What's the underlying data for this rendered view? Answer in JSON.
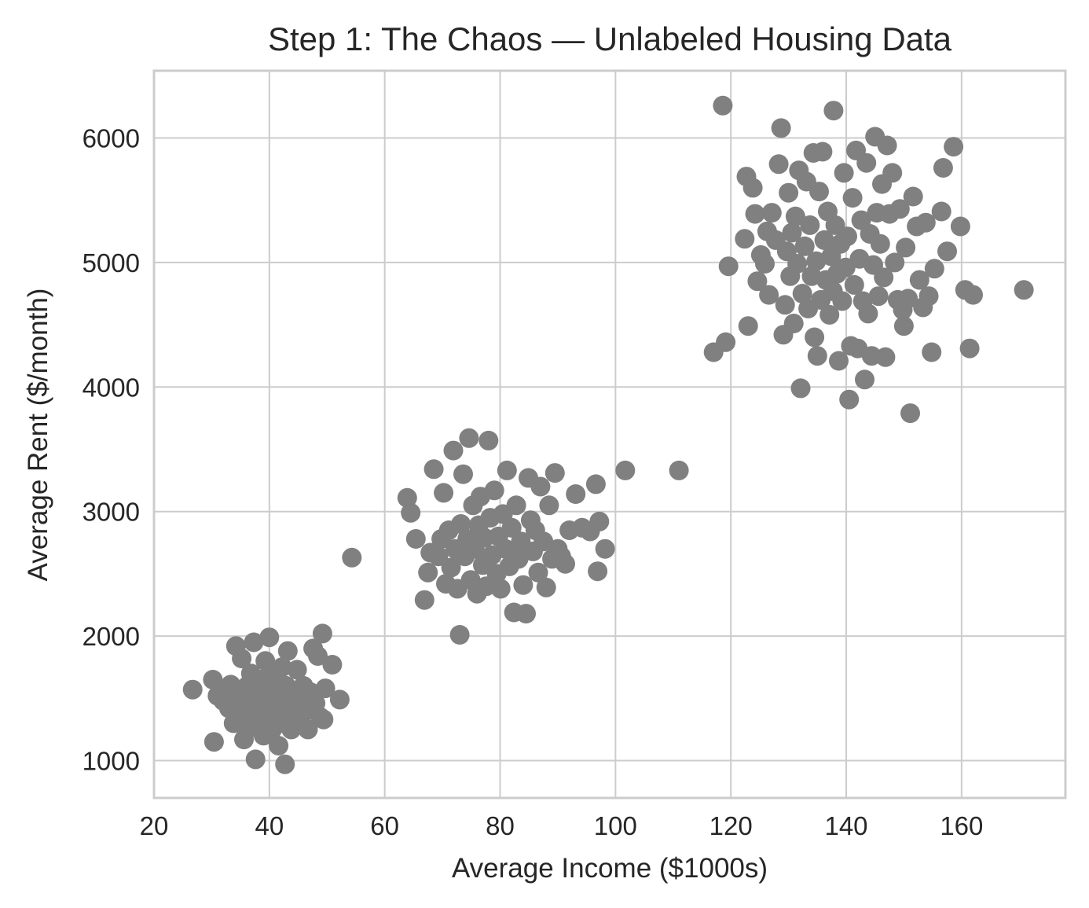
{
  "chart_data": {
    "type": "scatter",
    "title": "Step 1: The Chaos — Unlabeled Housing Data",
    "xlabel": "Average Income ($1000s)",
    "ylabel": "Average Rent ($/month)",
    "xlim": [
      20,
      178
    ],
    "ylim": [
      700,
      6540
    ],
    "xticks": [
      20,
      40,
      60,
      80,
      100,
      120,
      140,
      160
    ],
    "yticks": [
      1000,
      2000,
      3000,
      4000,
      5000,
      6000
    ],
    "grid": true,
    "marker_color": "#808080",
    "series": [
      {
        "points": [
          [
            26.7,
            1570
          ],
          [
            30.2,
            1650
          ],
          [
            30.4,
            1150
          ],
          [
            31.0,
            1520
          ],
          [
            32.0,
            1480
          ],
          [
            32.5,
            1560
          ],
          [
            33.0,
            1420
          ],
          [
            33.3,
            1610
          ],
          [
            33.8,
            1300
          ],
          [
            34.2,
            1920
          ],
          [
            34.5,
            1530
          ],
          [
            34.8,
            1450
          ],
          [
            35.0,
            1380
          ],
          [
            35.2,
            1820
          ],
          [
            35.6,
            1170
          ],
          [
            35.9,
            1500
          ],
          [
            36.2,
            1600
          ],
          [
            36.5,
            1260
          ],
          [
            36.8,
            1700
          ],
          [
            37.0,
            1400
          ],
          [
            37.3,
            1950
          ],
          [
            37.6,
            1010
          ],
          [
            37.9,
            1550
          ],
          [
            38.2,
            1300
          ],
          [
            38.5,
            1650
          ],
          [
            38.8,
            1450
          ],
          [
            39.0,
            1200
          ],
          [
            39.3,
            1800
          ],
          [
            39.6,
            1500
          ],
          [
            39.9,
            1350
          ],
          [
            40.0,
            1990
          ],
          [
            40.2,
            1600
          ],
          [
            40.5,
            1250
          ],
          [
            40.8,
            1700
          ],
          [
            41.0,
            1450
          ],
          [
            41.3,
            1550
          ],
          [
            41.6,
            1120
          ],
          [
            41.9,
            1400
          ],
          [
            42.2,
            1750
          ],
          [
            42.5,
            1300
          ],
          [
            42.7,
            970
          ],
          [
            42.9,
            1600
          ],
          [
            43.2,
            1880
          ],
          [
            43.5,
            1450
          ],
          [
            43.8,
            1250
          ],
          [
            44.1,
            1550
          ],
          [
            44.4,
            1380
          ],
          [
            44.8,
            1730
          ],
          [
            45.1,
            1500
          ],
          [
            45.5,
            1300
          ],
          [
            45.9,
            1600
          ],
          [
            46.3,
            1400
          ],
          [
            46.7,
            1250
          ],
          [
            47.1,
            1550
          ],
          [
            47.6,
            1900
          ],
          [
            48.0,
            1460
          ],
          [
            48.4,
            1840
          ],
          [
            48.8,
            1350
          ],
          [
            49.2,
            2020
          ],
          [
            49.4,
            1330
          ],
          [
            49.7,
            1580
          ],
          [
            50.9,
            1770
          ],
          [
            52.2,
            1490
          ],
          [
            54.3,
            2630
          ],
          [
            63.9,
            3110
          ],
          [
            64.5,
            2990
          ],
          [
            65.4,
            2780
          ],
          [
            66.9,
            2290
          ],
          [
            67.5,
            2510
          ],
          [
            67.9,
            2670
          ],
          [
            68.5,
            3340
          ],
          [
            69.3,
            2640
          ],
          [
            69.8,
            2780
          ],
          [
            70.2,
            3150
          ],
          [
            70.6,
            2420
          ],
          [
            71.1,
            2850
          ],
          [
            71.5,
            2550
          ],
          [
            71.9,
            3490
          ],
          [
            72.2,
            2700
          ],
          [
            72.6,
            2380
          ],
          [
            73.0,
            2010
          ],
          [
            73.2,
            2900
          ],
          [
            73.6,
            3300
          ],
          [
            73.9,
            2640
          ],
          [
            74.3,
            2780
          ],
          [
            74.6,
            3590
          ],
          [
            74.9,
            2450
          ],
          [
            75.3,
            3050
          ],
          [
            75.6,
            2700
          ],
          [
            76.0,
            2340
          ],
          [
            76.3,
            2890
          ],
          [
            76.6,
            3120
          ],
          [
            77.0,
            2570
          ],
          [
            77.3,
            2790
          ],
          [
            77.6,
            2400
          ],
          [
            78.0,
            3570
          ],
          [
            78.3,
            2950
          ],
          [
            78.6,
            2650
          ],
          [
            79.0,
            3170
          ],
          [
            79.4,
            2500
          ],
          [
            79.7,
            2800
          ],
          [
            80.1,
            2380
          ],
          [
            80.5,
            2980
          ],
          [
            80.9,
            2700
          ],
          [
            81.2,
            3330
          ],
          [
            81.6,
            2560
          ],
          [
            82.0,
            2870
          ],
          [
            82.4,
            2190
          ],
          [
            82.8,
            3050
          ],
          [
            83.2,
            2620
          ],
          [
            83.6,
            2760
          ],
          [
            84.0,
            2410
          ],
          [
            84.5,
            2180
          ],
          [
            84.9,
            3270
          ],
          [
            85.3,
            2930
          ],
          [
            85.7,
            2680
          ],
          [
            86.1,
            2850
          ],
          [
            86.6,
            2510
          ],
          [
            87.0,
            3200
          ],
          [
            87.5,
            2760
          ],
          [
            88.0,
            2390
          ],
          [
            88.5,
            3050
          ],
          [
            89.0,
            2620
          ],
          [
            89.5,
            3310
          ],
          [
            90.0,
            2700
          ],
          [
            90.6,
            2640
          ],
          [
            91.3,
            2580
          ],
          [
            92.0,
            2850
          ],
          [
            93.1,
            3140
          ],
          [
            94.2,
            2870
          ],
          [
            95.6,
            2840
          ],
          [
            96.6,
            3220
          ],
          [
            96.9,
            2520
          ],
          [
            97.2,
            2920
          ],
          [
            98.2,
            2700
          ],
          [
            101.7,
            3330
          ],
          [
            111.0,
            3330
          ],
          [
            117.0,
            4280
          ],
          [
            118.6,
            6260
          ],
          [
            119.1,
            4360
          ],
          [
            119.6,
            4970
          ],
          [
            122.4,
            5190
          ],
          [
            122.7,
            5690
          ],
          [
            123.0,
            4490
          ],
          [
            123.8,
            5600
          ],
          [
            124.2,
            5390
          ],
          [
            124.6,
            4850
          ],
          [
            125.2,
            5060
          ],
          [
            125.9,
            4990
          ],
          [
            126.3,
            5250
          ],
          [
            126.6,
            4740
          ],
          [
            127.1,
            5400
          ],
          [
            127.8,
            5180
          ],
          [
            128.3,
            5790
          ],
          [
            128.7,
            6080
          ],
          [
            129.1,
            4420
          ],
          [
            129.4,
            4660
          ],
          [
            129.7,
            5090
          ],
          [
            130.0,
            5560
          ],
          [
            130.3,
            4890
          ],
          [
            130.6,
            5240
          ],
          [
            130.9,
            4510
          ],
          [
            131.2,
            5370
          ],
          [
            131.5,
            4990
          ],
          [
            131.8,
            5740
          ],
          [
            132.1,
            3990
          ],
          [
            132.4,
            4750
          ],
          [
            132.8,
            5130
          ],
          [
            133.1,
            5650
          ],
          [
            133.4,
            4630
          ],
          [
            133.7,
            5300
          ],
          [
            134.0,
            4890
          ],
          [
            134.3,
            5880
          ],
          [
            134.5,
            4400
          ],
          [
            134.8,
            5010
          ],
          [
            135.0,
            4250
          ],
          [
            135.3,
            5570
          ],
          [
            135.6,
            4700
          ],
          [
            135.9,
            5890
          ],
          [
            136.2,
            5180
          ],
          [
            136.5,
            4860
          ],
          [
            136.8,
            5410
          ],
          [
            137.1,
            4580
          ],
          [
            137.4,
            5050
          ],
          [
            137.7,
            4770
          ],
          [
            137.8,
            6220
          ],
          [
            138.1,
            5300
          ],
          [
            138.4,
            4910
          ],
          [
            138.7,
            4210
          ],
          [
            139.0,
            5150
          ],
          [
            139.3,
            4690
          ],
          [
            139.6,
            5720
          ],
          [
            139.9,
            4960
          ],
          [
            140.2,
            5210
          ],
          [
            140.5,
            3900
          ],
          [
            140.8,
            4330
          ],
          [
            141.1,
            5520
          ],
          [
            141.4,
            4820
          ],
          [
            141.7,
            5900
          ],
          [
            142.0,
            4310
          ],
          [
            142.3,
            5030
          ],
          [
            142.6,
            5340
          ],
          [
            142.9,
            4690
          ],
          [
            143.2,
            4060
          ],
          [
            143.5,
            5800
          ],
          [
            143.8,
            4590
          ],
          [
            144.1,
            5230
          ],
          [
            144.4,
            4250
          ],
          [
            144.7,
            4980
          ],
          [
            145.0,
            6010
          ],
          [
            145.3,
            5400
          ],
          [
            145.6,
            4730
          ],
          [
            145.9,
            5150
          ],
          [
            146.2,
            5630
          ],
          [
            146.5,
            4880
          ],
          [
            146.8,
            4240
          ],
          [
            147.1,
            5940
          ],
          [
            147.5,
            5390
          ],
          [
            148.0,
            5720
          ],
          [
            148.4,
            5000
          ],
          [
            148.9,
            4700
          ],
          [
            149.3,
            5430
          ],
          [
            149.8,
            4620
          ],
          [
            150.0,
            4490
          ],
          [
            150.3,
            5120
          ],
          [
            150.7,
            4710
          ],
          [
            151.1,
            3790
          ],
          [
            151.6,
            5530
          ],
          [
            152.2,
            5290
          ],
          [
            152.7,
            4860
          ],
          [
            153.3,
            4640
          ],
          [
            153.8,
            5320
          ],
          [
            154.3,
            4730
          ],
          [
            154.8,
            4280
          ],
          [
            155.3,
            4950
          ],
          [
            156.5,
            5410
          ],
          [
            156.8,
            5760
          ],
          [
            157.5,
            5090
          ],
          [
            158.6,
            5930
          ],
          [
            159.8,
            5290
          ],
          [
            160.6,
            4780
          ],
          [
            161.4,
            4310
          ],
          [
            162.0,
            4740
          ],
          [
            170.8,
            4780
          ]
        ]
      }
    ]
  }
}
